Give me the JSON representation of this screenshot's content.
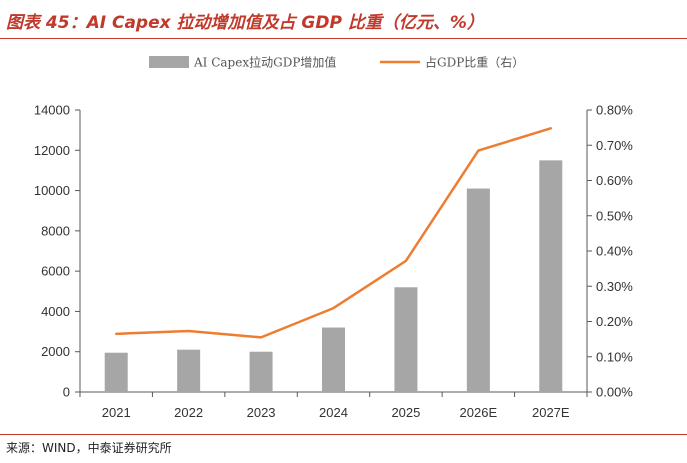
{
  "title": "图表 45：AI Capex 拉动增加值及占 GDP 比重（亿元、%）",
  "source": "来源：WIND，中泰证券研究所",
  "colors": {
    "bar": "#a6a6a6",
    "line": "#ed7d31",
    "title": "#c0392b",
    "axis": "#595959"
  },
  "chart_data": {
    "type": "bar",
    "categories": [
      "2021",
      "2022",
      "2023",
      "2024",
      "2025",
      "2026E",
      "2027E"
    ],
    "series": [
      {
        "name": "AI Capex拉动GDP增加值",
        "type": "bar",
        "axis": "left",
        "values": [
          1950,
          2100,
          2000,
          3200,
          5200,
          10100,
          11500
        ]
      },
      {
        "name": "占GDP比重（右）",
        "type": "line",
        "axis": "right",
        "values": [
          0.165,
          0.173,
          0.155,
          0.238,
          0.372,
          0.685,
          0.748
        ]
      }
    ],
    "ylim_left": [
      0,
      14000
    ],
    "ylim_right": [
      0,
      0.8
    ],
    "yticks_left": [
      "0",
      "2000",
      "4000",
      "6000",
      "8000",
      "10000",
      "12000",
      "14000"
    ],
    "yticks_right": [
      "0.00%",
      "0.10%",
      "0.20%",
      "0.30%",
      "0.40%",
      "0.50%",
      "0.60%",
      "0.70%",
      "0.80%"
    ],
    "legend_position": "top-center",
    "grid": false
  }
}
